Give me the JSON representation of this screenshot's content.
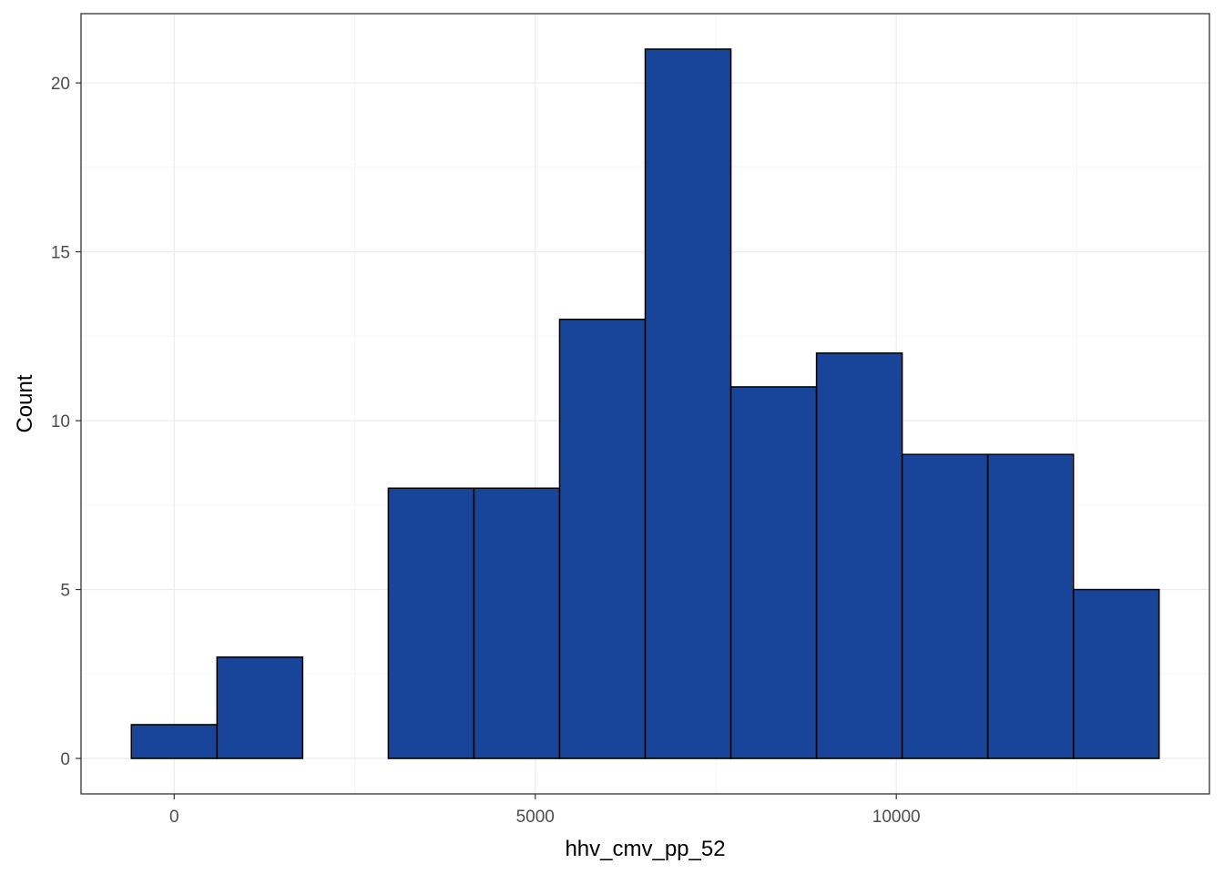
{
  "chart_data": {
    "type": "histogram",
    "xlabel": "hhv_cmv_pp_52",
    "ylabel": "Count",
    "bin_edges": [
      -593,
      593,
      1779,
      2965,
      4151,
      5337,
      6523,
      7709,
      8895,
      10081,
      11267,
      12453,
      13639
    ],
    "counts": [
      1,
      3,
      0,
      8,
      8,
      13,
      21,
      11,
      12,
      9,
      9,
      5
    ],
    "xlim": [
      -1290,
      14336
    ],
    "ylim": [
      -1.05,
      22.05
    ],
    "x_ticks": [
      0,
      5000,
      10000
    ],
    "x_tick_labels": [
      "0",
      "5000",
      "10000"
    ],
    "y_ticks": [
      0,
      5,
      10,
      15,
      20
    ],
    "y_tick_labels": [
      "0",
      "5",
      "10",
      "15",
      "20"
    ],
    "grid": true,
    "theme": "bw",
    "bar_fill": "#18449a",
    "bar_stroke": "#000000",
    "panel_border": "#333333",
    "grid_major_color": "#ebebeb",
    "grid_minor_color": "#f5f5f5"
  }
}
